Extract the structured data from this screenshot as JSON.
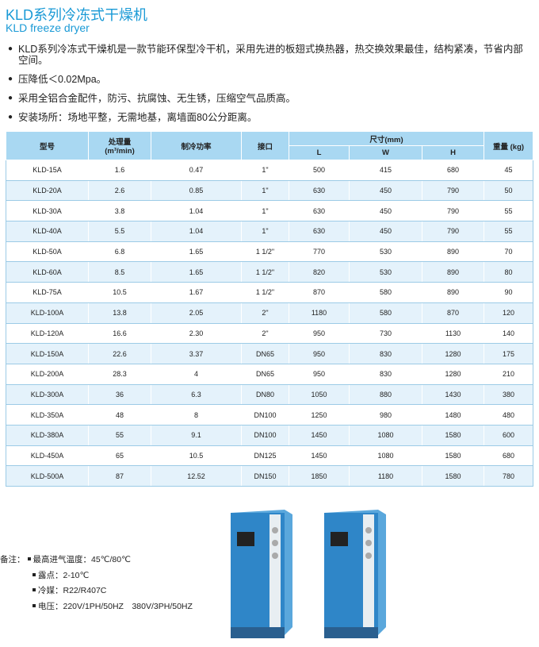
{
  "header": {
    "title": "KLD系列冷冻式干燥机",
    "subtitle": "KLD freeze dryer"
  },
  "bullets": [
    "KLD系列冷冻式干燥机是一款节能环保型冷干机，采用先进的板翅式换热器，热交换效果最佳，结构紧凑，节省内部空间。",
    "压降低＜0.02Mpa。",
    "采用全铝合金配件，防污、抗腐蚀、无生锈，压缩空气品质高。",
    "安装场所：场地平整，无需地基，离墙面80公分距离。"
  ],
  "table": {
    "headers": {
      "model": "型号",
      "flow": "处理量",
      "flow_unit": "(m³/min)",
      "power": "制冷功率",
      "port": "接口",
      "size": "尺寸(mm)",
      "L": "L",
      "W": "W",
      "H": "H",
      "weight": "重量 (kg)"
    },
    "rows": [
      [
        "KLD-15A",
        "1.6",
        "0.47",
        "1\"",
        "500",
        "415",
        "680",
        "45"
      ],
      [
        "KLD-20A",
        "2.6",
        "0.85",
        "1\"",
        "630",
        "450",
        "790",
        "50"
      ],
      [
        "KLD-30A",
        "3.8",
        "1.04",
        "1\"",
        "630",
        "450",
        "790",
        "55"
      ],
      [
        "KLD-40A",
        "5.5",
        "1.04",
        "1\"",
        "630",
        "450",
        "790",
        "55"
      ],
      [
        "KLD-50A",
        "6.8",
        "1.65",
        "1 1/2\"",
        "770",
        "530",
        "890",
        "70"
      ],
      [
        "KLD-60A",
        "8.5",
        "1.65",
        "1 1/2\"",
        "820",
        "530",
        "890",
        "80"
      ],
      [
        "KLD-75A",
        "10.5",
        "1.67",
        "1 1/2\"",
        "870",
        "580",
        "890",
        "90"
      ],
      [
        "KLD-100A",
        "13.8",
        "2.05",
        "2\"",
        "1180",
        "580",
        "870",
        "120"
      ],
      [
        "KLD-120A",
        "16.6",
        "2.30",
        "2\"",
        "950",
        "730",
        "1130",
        "140"
      ],
      [
        "KLD-150A",
        "22.6",
        "3.37",
        "DN65",
        "950",
        "830",
        "1280",
        "175"
      ],
      [
        "KLD-200A",
        "28.3",
        "4",
        "DN65",
        "950",
        "830",
        "1280",
        "210"
      ],
      [
        "KLD-300A",
        "36",
        "6.3",
        "DN80",
        "1050",
        "880",
        "1430",
        "380"
      ],
      [
        "KLD-350A",
        "48",
        "8",
        "DN100",
        "1250",
        "980",
        "1480",
        "480"
      ],
      [
        "KLD-380A",
        "55",
        "9.1",
        "DN100",
        "1450",
        "1080",
        "1580",
        "600"
      ],
      [
        "KLD-450A",
        "65",
        "10.5",
        "DN125",
        "1450",
        "1080",
        "1580",
        "680"
      ],
      [
        "KLD-500A",
        "87",
        "12.52",
        "DN150",
        "1850",
        "1180",
        "1580",
        "780"
      ]
    ]
  },
  "notes": {
    "label": "备注：",
    "items": [
      "最高进气温度：45℃/80℃",
      "露点：2-10℃",
      "冷媒：R22/R407C",
      "电压：220V/1PH/50HZ　380V/3PH/50HZ"
    ]
  },
  "colors": {
    "accent": "#1a9ad6",
    "header_bg": "#a9d8f2",
    "row_alt": "#e4f2fb",
    "machine": "#2f86c8"
  }
}
